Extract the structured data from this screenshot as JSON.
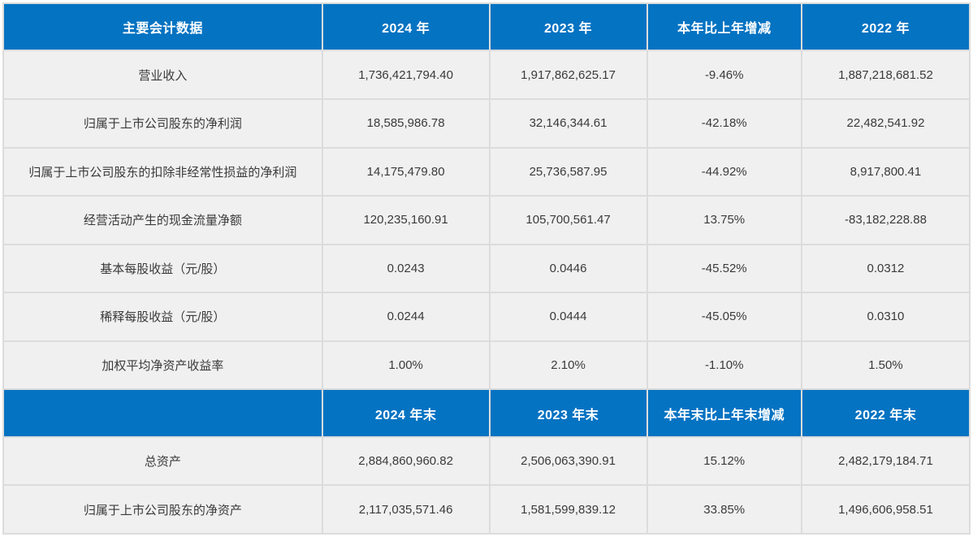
{
  "theme": {
    "header_bg": "#0473c2",
    "header_text": "#ffffff",
    "row_bg": "#f0f0f1",
    "border_color": "#dcdcdc",
    "body_text": "#3a3a3a",
    "page_bg": "#ffffff"
  },
  "table": {
    "name": "key-accounting-data",
    "column_widths_percent": [
      33.0,
      17.3,
      16.3,
      16.0,
      17.4
    ],
    "sections": [
      {
        "header": [
          "主要会计数据",
          "2024 年",
          "2023 年",
          "本年比上年增减",
          "2022 年"
        ],
        "rows": [
          [
            "营业收入",
            "1,736,421,794.40",
            "1,917,862,625.17",
            "-9.46%",
            "1,887,218,681.52"
          ],
          [
            "归属于上市公司股东的净利润",
            "18,585,986.78",
            "32,146,344.61",
            "-42.18%",
            "22,482,541.92"
          ],
          [
            "归属于上市公司股东的扣除非经常性损益的净利润",
            "14,175,479.80",
            "25,736,587.95",
            "-44.92%",
            "8,917,800.41"
          ],
          [
            "经营活动产生的现金流量净额",
            "120,235,160.91",
            "105,700,561.47",
            "13.75%",
            "-83,182,228.88"
          ],
          [
            "基本每股收益（元/股）",
            "0.0243",
            "0.0446",
            "-45.52%",
            "0.0312"
          ],
          [
            "稀释每股收益（元/股）",
            "0.0244",
            "0.0444",
            "-45.05%",
            "0.0310"
          ],
          [
            "加权平均净资产收益率",
            "1.00%",
            "2.10%",
            "-1.10%",
            "1.50%"
          ]
        ]
      },
      {
        "header": [
          "",
          "2024 年末",
          "2023 年末",
          "本年末比上年末增减",
          "2022 年末"
        ],
        "rows": [
          [
            "总资产",
            "2,884,860,960.82",
            "2,506,063,390.91",
            "15.12%",
            "2,482,179,184.71"
          ],
          [
            "归属于上市公司股东的净资产",
            "2,117,035,571.46",
            "1,581,599,839.12",
            "33.85%",
            "1,496,606,958.51"
          ]
        ]
      }
    ]
  }
}
